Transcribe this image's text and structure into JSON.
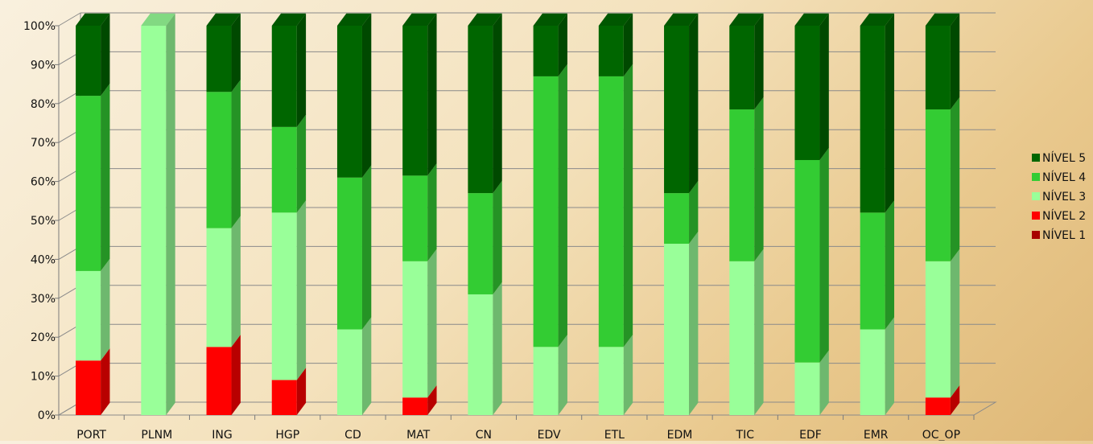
{
  "chart_data": {
    "type": "bar",
    "stacked": true,
    "percent": true,
    "three_d": true,
    "title": "",
    "xlabel": "",
    "ylabel": "",
    "ylim": [
      0,
      100
    ],
    "y_ticks": [
      "0%",
      "10%",
      "20%",
      "30%",
      "40%",
      "50%",
      "60%",
      "70%",
      "80%",
      "90%",
      "100%"
    ],
    "grid": true,
    "legend_position": "right",
    "categories": [
      "PORT",
      "PLNM",
      "ING",
      "HGP",
      "CD",
      "MAT",
      "CN",
      "EDV",
      "ETL",
      "EDM",
      "TIC",
      "EDF",
      "EMR",
      "OC_OP"
    ],
    "series": [
      {
        "name": "NÍVEL 1",
        "color": "#a80000",
        "values": [
          0,
          0,
          0,
          0,
          0,
          0,
          0,
          0,
          0,
          0,
          0,
          0,
          0,
          0
        ]
      },
      {
        "name": "NÍVEL 2",
        "color": "#ff0000",
        "values": [
          14,
          0,
          17.5,
          9,
          0,
          4.5,
          0,
          0,
          0,
          0,
          0,
          0,
          0,
          4.5
        ]
      },
      {
        "name": "NÍVEL 3",
        "color": "#99ff99",
        "values": [
          23,
          100,
          30.5,
          43,
          22,
          35,
          31,
          17.5,
          17.5,
          44,
          39.5,
          13.5,
          22,
          35
        ]
      },
      {
        "name": "NÍVEL 4",
        "color": "#33cc33",
        "values": [
          45,
          0,
          35,
          22,
          39,
          22,
          26,
          69.5,
          69.5,
          13,
          39,
          52,
          30,
          39
        ]
      },
      {
        "name": "NÍVEL 5",
        "color": "#006600",
        "values": [
          18,
          0,
          17,
          26,
          39,
          38.5,
          43,
          13,
          13,
          43,
          21.5,
          34.5,
          48,
          21.5
        ]
      }
    ]
  }
}
